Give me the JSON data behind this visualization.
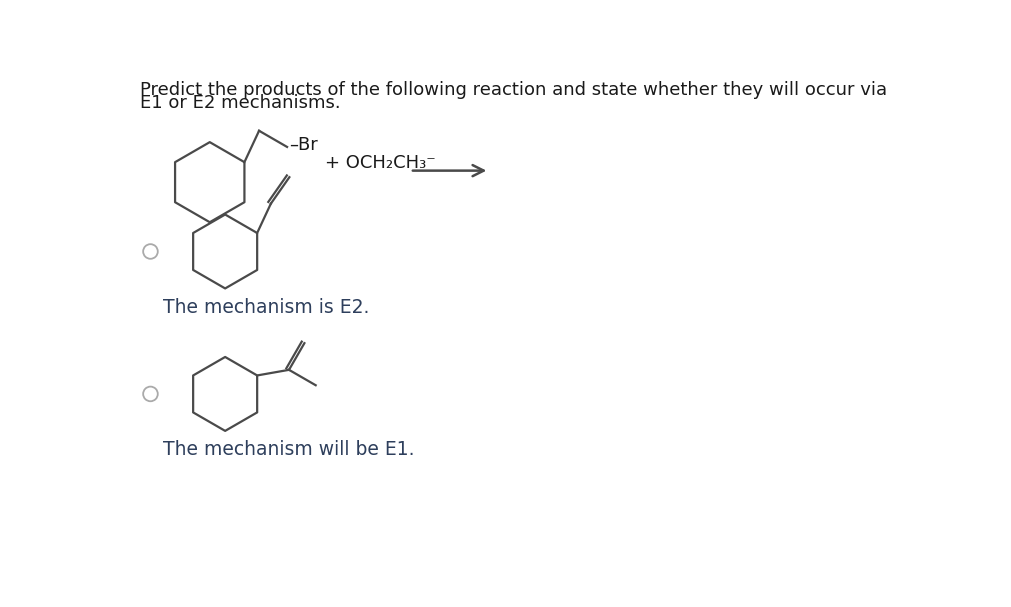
{
  "title_line1": "Predict the products of the following reaction and state whether they will occur via",
  "title_line2": "E1 or E2 mechanisms.",
  "reagent_label": "+ OCH₂CH₃⁻",
  "br_label": "–Br",
  "option1_text": "The mechanism is E2.",
  "option2_text": "The mechanism will be E1.",
  "bg_color": "#ffffff",
  "line_color": "#4a4a4a",
  "text_color": "#2e3f5c",
  "title_color": "#1a1a1a",
  "title_fontsize": 13.0,
  "label_fontsize": 13.0,
  "option_fontsize": 13.5
}
